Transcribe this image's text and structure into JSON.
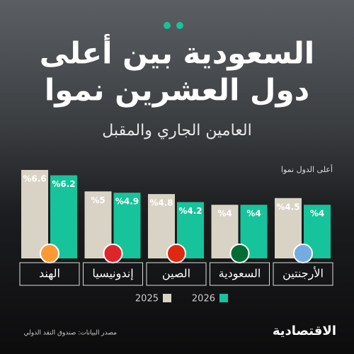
{
  "chart_data": {
    "type": "bar",
    "title": [
      "السعودية بين أعلى",
      "دول العشرين نموا"
    ],
    "subtitle": "العامين الجاري والمقبل",
    "annotation": "أعلى الدول نموا",
    "categories": [
      "الهند",
      "إندونيسيا",
      "الصين",
      "السعودية",
      "الأرجنتين"
    ],
    "series": [
      {
        "name": "2025",
        "color": "#d9d3c5",
        "values": [
          6.6,
          5,
          4.8,
          4,
          4.5
        ],
        "value_labels": [
          "%6.6",
          "%5",
          "%4.8",
          "%4",
          "%4.5"
        ]
      },
      {
        "name": "2026",
        "color": "#17c39b",
        "values": [
          6.2,
          4.9,
          4.2,
          4,
          4
        ],
        "value_labels": [
          "%6.2",
          "%4.9",
          "%4.2",
          "%4",
          "%4"
        ]
      }
    ],
    "source": "مصدر البيانات: صندوق النقد الدولي",
    "logo": "الاقتصادية"
  }
}
